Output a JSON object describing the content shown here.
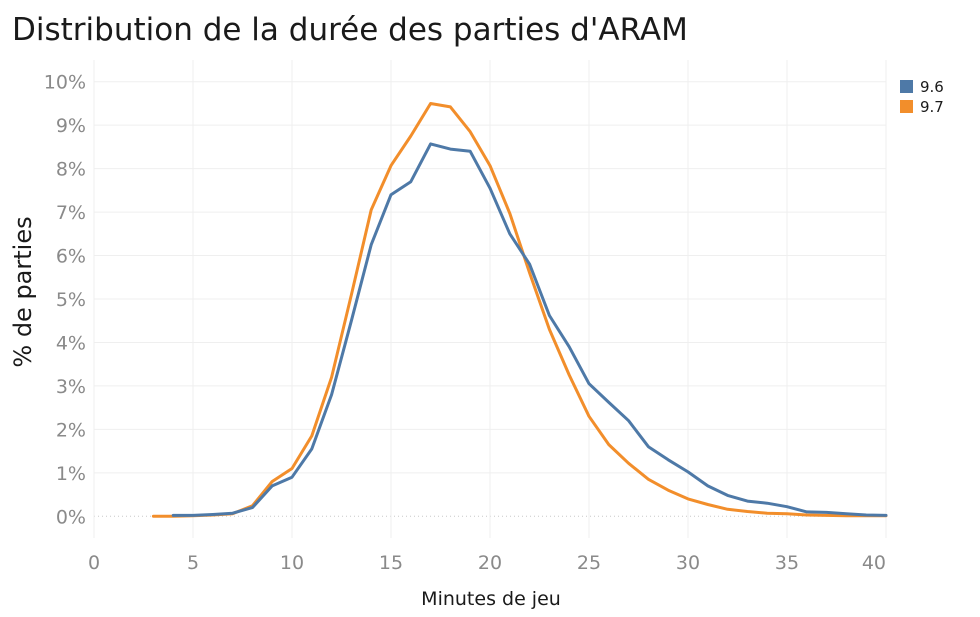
{
  "chart_data": {
    "type": "line",
    "title": "Distribution de la durée des parties d'ARAM",
    "xlabel": "Minutes de jeu",
    "ylabel": "% de parties",
    "xlim": [
      0,
      40
    ],
    "ylim": [
      -0.5,
      10.5
    ],
    "xticks": [
      0,
      5,
      10,
      15,
      20,
      25,
      30,
      35,
      40
    ],
    "xtick_labels": [
      "0",
      "5",
      "10",
      "15",
      "20",
      "25",
      "30",
      "35",
      "40"
    ],
    "yticks": [
      0,
      1,
      2,
      3,
      4,
      5,
      6,
      7,
      8,
      9,
      10
    ],
    "ytick_labels": [
      "0%",
      "1%",
      "2%",
      "3%",
      "4%",
      "5%",
      "6%",
      "7%",
      "8%",
      "9%",
      "10%"
    ],
    "grid": true,
    "legend": "top-right",
    "series": [
      {
        "name": "9.6",
        "color": "#4e79a7",
        "x": [
          4,
          5,
          6,
          7,
          8,
          9,
          10,
          11,
          12,
          13,
          14,
          15,
          16,
          17,
          18,
          19,
          20,
          21,
          22,
          23,
          24,
          25,
          26,
          27,
          28,
          29,
          30,
          31,
          32,
          33,
          34,
          35,
          36,
          37,
          38,
          39,
          40
        ],
        "y": [
          0.02,
          0.02,
          0.04,
          0.07,
          0.2,
          0.7,
          0.9,
          1.55,
          2.8,
          4.5,
          6.25,
          7.4,
          7.7,
          8.57,
          8.45,
          8.4,
          7.55,
          6.5,
          5.8,
          4.62,
          3.9,
          3.05,
          2.62,
          2.2,
          1.6,
          1.3,
          1.02,
          0.7,
          0.48,
          0.35,
          0.3,
          0.22,
          0.1,
          0.09,
          0.06,
          0.03,
          0.02
        ]
      },
      {
        "name": "9.7",
        "color": "#f28e2b",
        "x": [
          3,
          4,
          5,
          6,
          7,
          8,
          9,
          10,
          11,
          12,
          13,
          14,
          15,
          16,
          17,
          18,
          19,
          20,
          21,
          22,
          23,
          24,
          25,
          26,
          27,
          28,
          29,
          30,
          31,
          32,
          33,
          34,
          35,
          36,
          37,
          38,
          39,
          40
        ],
        "y": [
          0,
          0,
          0.01,
          0.03,
          0.06,
          0.24,
          0.8,
          1.1,
          1.85,
          3.2,
          5.1,
          7.05,
          8.07,
          8.75,
          9.5,
          9.42,
          8.85,
          8.07,
          6.97,
          5.6,
          4.3,
          3.25,
          2.3,
          1.65,
          1.22,
          0.85,
          0.6,
          0.4,
          0.27,
          0.16,
          0.11,
          0.07,
          0.06,
          0.03,
          0.02,
          0.01,
          0.01,
          0.01
        ]
      }
    ]
  }
}
